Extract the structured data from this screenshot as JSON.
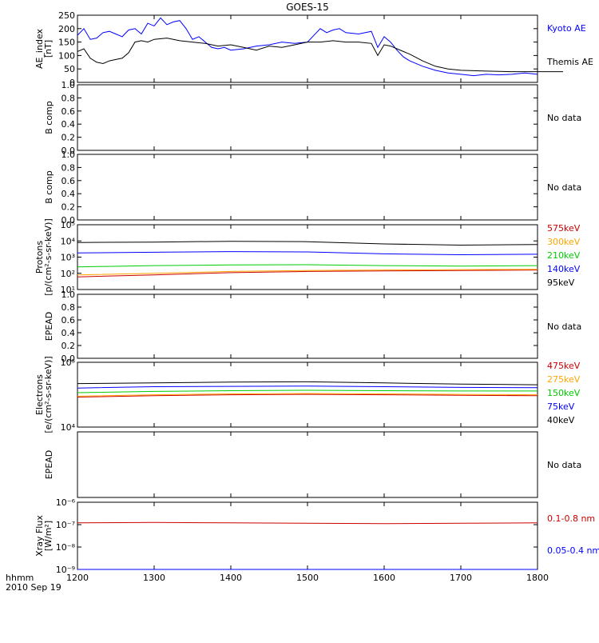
{
  "title": "GOES-15",
  "x_axis": {
    "ticks": [
      "1200",
      "1300",
      "1400",
      "1500",
      "1600",
      "1700",
      "1800"
    ],
    "corner_top": "hhmm",
    "corner_bottom": "2010 Sep 19"
  },
  "colors": {
    "black": "#000000",
    "blue": "#0000ff",
    "green": "#00cc00",
    "orange": "#ffa500",
    "red": "#cc0000"
  },
  "chart_data": [
    {
      "type": "line",
      "id": "ae",
      "ylabel": [
        "AE_index",
        "[nT]"
      ],
      "ylim": [
        0,
        250
      ],
      "yticks": [
        "0",
        "50",
        "100",
        "150",
        "200",
        "250"
      ],
      "yscale": "linear",
      "x_range_hhmm": [
        1200,
        1800
      ],
      "series": [
        {
          "name": "Kyoto AE",
          "color": "#0000ff",
          "x": [
            1200,
            1205,
            1210,
            1215,
            1220,
            1225,
            1230,
            1235,
            1240,
            1245,
            1250,
            1255,
            1300,
            1305,
            1310,
            1315,
            1320,
            1325,
            1330,
            1335,
            1340,
            1345,
            1350,
            1355,
            1400,
            1410,
            1420,
            1430,
            1440,
            1450,
            1500,
            1505,
            1510,
            1515,
            1520,
            1525,
            1530,
            1540,
            1550,
            1555,
            1600,
            1605,
            1610,
            1615,
            1620,
            1630,
            1640,
            1650,
            1700,
            1710,
            1720,
            1730,
            1740,
            1750,
            1800
          ],
          "values": [
            175,
            200,
            160,
            165,
            185,
            190,
            180,
            170,
            195,
            200,
            180,
            220,
            210,
            240,
            215,
            225,
            230,
            200,
            160,
            170,
            150,
            130,
            125,
            130,
            120,
            125,
            135,
            140,
            150,
            145,
            150,
            175,
            200,
            185,
            195,
            200,
            185,
            180,
            190,
            130,
            170,
            150,
            120,
            95,
            80,
            60,
            45,
            35,
            30,
            25,
            30,
            28,
            30,
            35,
            30
          ]
        },
        {
          "name": "Themis AE",
          "color": "#000000",
          "x": [
            1200,
            1205,
            1210,
            1215,
            1220,
            1225,
            1230,
            1235,
            1240,
            1245,
            1250,
            1255,
            1300,
            1310,
            1320,
            1330,
            1340,
            1350,
            1400,
            1410,
            1420,
            1430,
            1440,
            1450,
            1500,
            1510,
            1520,
            1530,
            1540,
            1550,
            1555,
            1600,
            1605,
            1610,
            1620,
            1630,
            1640,
            1650,
            1700,
            1720,
            1740,
            1760,
            1780,
            1800
          ],
          "values": [
            115,
            125,
            90,
            75,
            70,
            80,
            85,
            90,
            110,
            150,
            155,
            150,
            160,
            165,
            155,
            150,
            145,
            135,
            140,
            130,
            120,
            135,
            130,
            140,
            150,
            150,
            155,
            150,
            150,
            145,
            100,
            140,
            135,
            125,
            105,
            80,
            60,
            50,
            45,
            42,
            40,
            40,
            40,
            40
          ]
        }
      ]
    },
    {
      "type": "line",
      "id": "bcomp1",
      "ylabel": [
        "B comp"
      ],
      "ylim": [
        0,
        1
      ],
      "yticks": [
        "0.0",
        "0.2",
        "0.4",
        "0.6",
        "0.8",
        "1.0"
      ],
      "yscale": "linear",
      "note": "No data"
    },
    {
      "type": "line",
      "id": "bcomp2",
      "ylabel": [
        "B comp"
      ],
      "ylim": [
        0,
        1
      ],
      "yticks": [
        "0.0",
        "0.2",
        "0.4",
        "0.6",
        "0.8",
        "1.0"
      ],
      "yscale": "linear",
      "note": "No data"
    },
    {
      "type": "line",
      "id": "protons",
      "ylabel": [
        "Protons",
        "[p/(cm²-s-sr-keV)]"
      ],
      "ylim_log10": [
        1,
        5
      ],
      "yticks": [
        "10¹",
        "10²",
        "10³",
        "10⁴",
        "10⁵"
      ],
      "yscale": "log",
      "x_range_hhmm": [
        1200,
        1800
      ],
      "series": [
        {
          "name": "575keV",
          "color": "#cc0000",
          "x": [
            1200,
            1300,
            1400,
            1500,
            1600,
            1700,
            1800
          ],
          "values": [
            60,
            80,
            110,
            130,
            140,
            150,
            160
          ]
        },
        {
          "name": "300keV",
          "color": "#ffa500",
          "x": [
            1200,
            1300,
            1400,
            1500,
            1600,
            1700,
            1800
          ],
          "values": [
            80,
            100,
            130,
            150,
            160,
            170,
            175
          ]
        },
        {
          "name": "210keV",
          "color": "#00cc00",
          "x": [
            1200,
            1300,
            1400,
            1500,
            1600,
            1700,
            1800
          ],
          "values": [
            250,
            300,
            330,
            340,
            300,
            280,
            300
          ]
        },
        {
          "name": "140keV",
          "color": "#0000ff",
          "x": [
            1200,
            1300,
            1400,
            1500,
            1600,
            1700,
            1800
          ],
          "values": [
            1800,
            2000,
            2200,
            2100,
            1600,
            1400,
            1500
          ]
        },
        {
          "name": "95keV",
          "color": "#000000",
          "x": [
            1200,
            1300,
            1400,
            1500,
            1600,
            1700,
            1800
          ],
          "values": [
            8000,
            8500,
            9500,
            9000,
            6500,
            5500,
            6000
          ]
        }
      ]
    },
    {
      "type": "line",
      "id": "epead1",
      "ylabel": [
        "EPEAD"
      ],
      "ylim": [
        0,
        1
      ],
      "yticks": [
        "0.0",
        "0.2",
        "0.4",
        "0.6",
        "0.8",
        "1.0"
      ],
      "yscale": "linear",
      "note": "No data"
    },
    {
      "type": "line",
      "id": "electrons",
      "ylabel": [
        "Electrons",
        "[e/(cm²-s-sr-keV)]"
      ],
      "ylim_log10": [
        4,
        5
      ],
      "yticks": [
        "10⁴",
        "10⁵"
      ],
      "yscale": "log",
      "x_range_hhmm": [
        1200,
        1800
      ],
      "series": [
        {
          "name": "475keV",
          "color": "#cc0000",
          "x": [
            1200,
            1300,
            1400,
            1500,
            1600,
            1700,
            1800
          ],
          "values": [
            29000,
            30500,
            31500,
            32000,
            31500,
            31000,
            30500
          ]
        },
        {
          "name": "275keV",
          "color": "#ffa500",
          "x": [
            1200,
            1300,
            1400,
            1500,
            1600,
            1700,
            1800
          ],
          "values": [
            30000,
            31500,
            32500,
            33000,
            32500,
            32000,
            31500
          ]
        },
        {
          "name": "150keV",
          "color": "#00cc00",
          "x": [
            1200,
            1300,
            1400,
            1500,
            1600,
            1700,
            1800
          ],
          "values": [
            34000,
            35500,
            36500,
            37000,
            36500,
            36000,
            36000
          ]
        },
        {
          "name": "75keV",
          "color": "#0000ff",
          "x": [
            1200,
            1300,
            1400,
            1500,
            1600,
            1700,
            1800
          ],
          "values": [
            40000,
            42000,
            42500,
            43000,
            42000,
            41000,
            40500
          ]
        },
        {
          "name": "40keV",
          "color": "#000000",
          "x": [
            1200,
            1300,
            1400,
            1500,
            1600,
            1700,
            1800
          ],
          "values": [
            47000,
            48000,
            49500,
            50000,
            48000,
            46000,
            45000
          ]
        }
      ]
    },
    {
      "type": "line",
      "id": "epead2",
      "ylabel": [
        "EPEAD"
      ],
      "ylim": [
        0,
        1
      ],
      "yticks": [],
      "yscale": "linear",
      "note": "No data"
    },
    {
      "type": "line",
      "id": "xray",
      "ylabel": [
        "Xray Flux",
        "[W/m²]"
      ],
      "ylim_log10": [
        -9,
        -6
      ],
      "yticks": [
        "10⁻⁹",
        "10⁻⁸",
        "10⁻⁷",
        "10⁻⁶"
      ],
      "yscale": "log",
      "x_range_hhmm": [
        1200,
        1800
      ],
      "series": [
        {
          "name": "0.1-0.8 nm",
          "color": "#cc0000",
          "x": [
            1200,
            1300,
            1400,
            1500,
            1600,
            1700,
            1800
          ],
          "values": [
            1.2e-07,
            1.25e-07,
            1.2e-07,
            1.15e-07,
            1.1e-07,
            1.15e-07,
            1.2e-07
          ]
        },
        {
          "name": "0.05-0.4 nm",
          "color": "#0000ff",
          "x": [
            1200,
            1300,
            1400,
            1500,
            1600,
            1700,
            1800
          ],
          "values": [
            1e-09,
            1e-09,
            1e-09,
            1e-09,
            1e-09,
            1e-09,
            1e-09
          ]
        }
      ]
    }
  ]
}
